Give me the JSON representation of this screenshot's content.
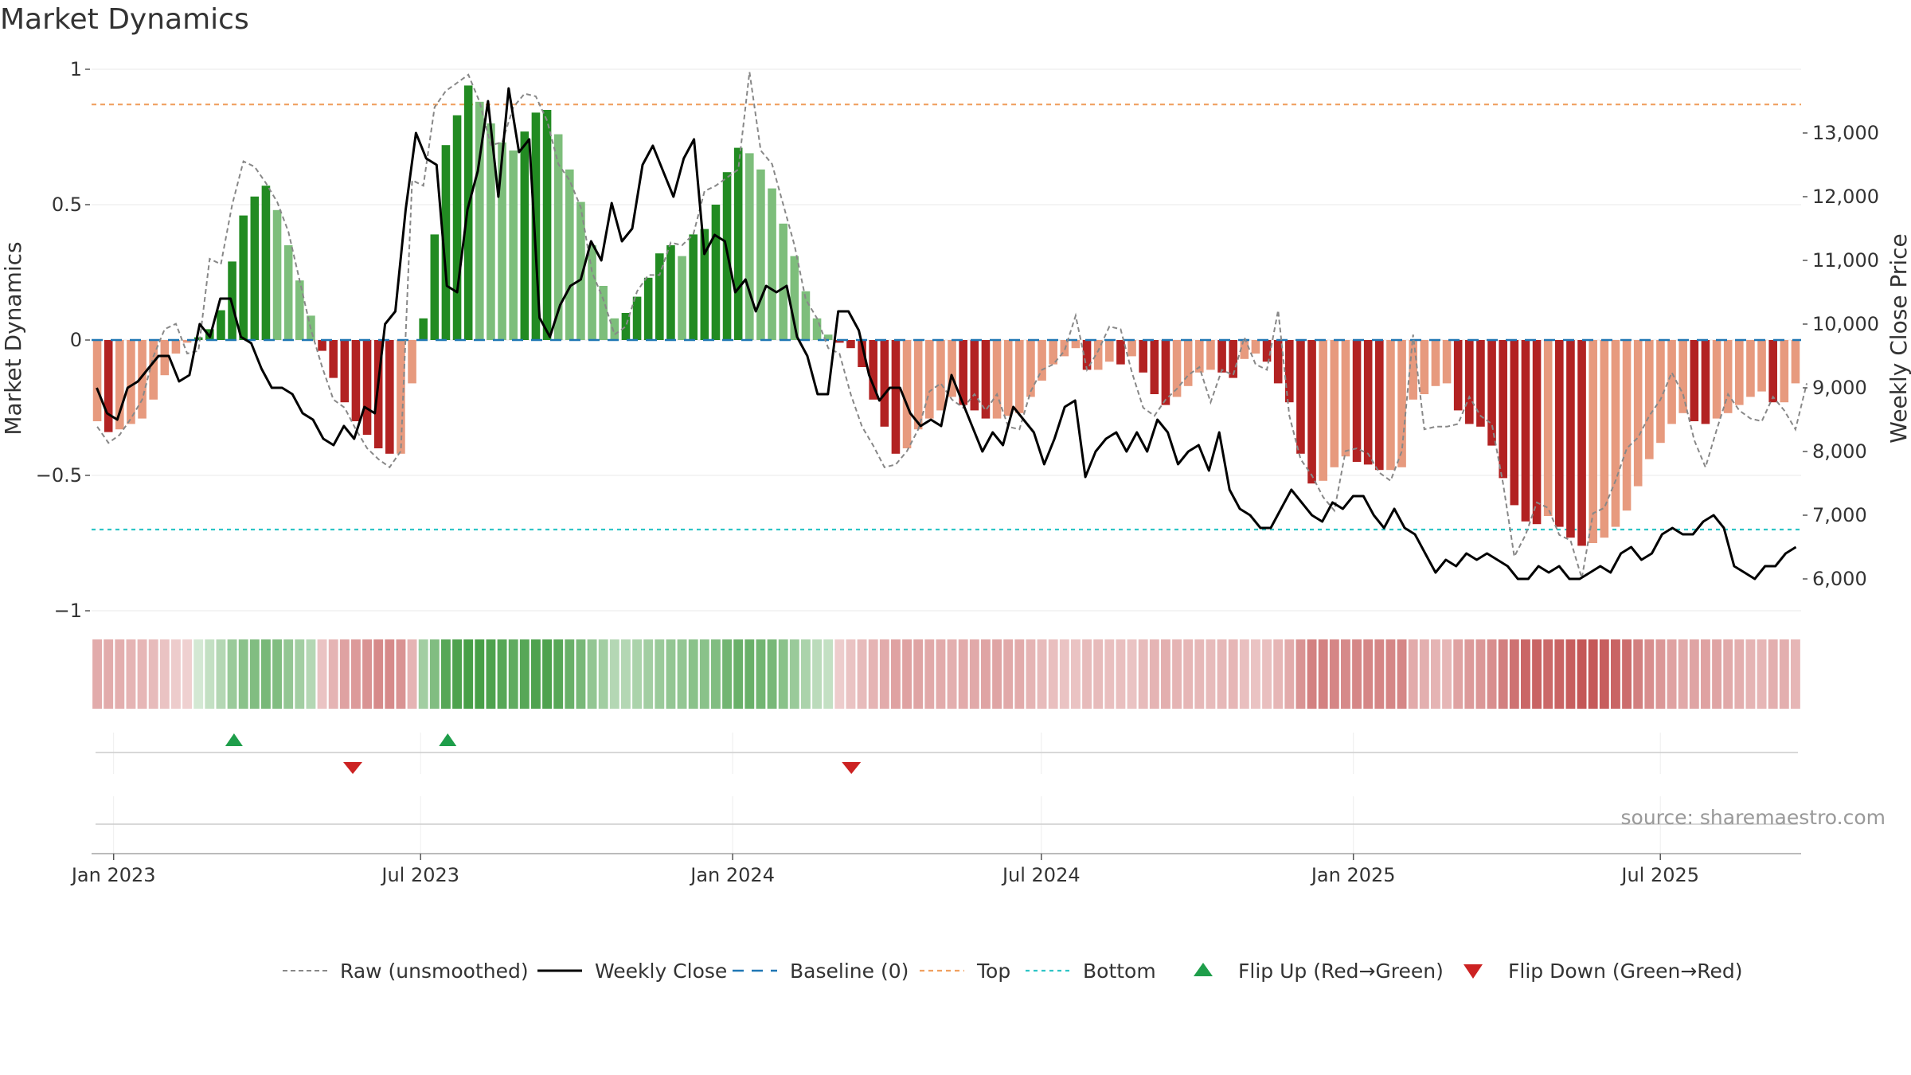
{
  "title": "Market Dynamics",
  "source": "source: sharemaestro.com",
  "colors": {
    "dark_green": "#228B22",
    "light_green": "#7DBE7B",
    "dark_red": "#B22222",
    "light_red": "#E79A7E",
    "weekly_close": "#000000",
    "raw": "#888888",
    "baseline": "#1F77B4",
    "top": "#F0A060",
    "bottom": "#2EC4C6",
    "flip_up": "#1E9E4A",
    "flip_down": "#CC2222"
  },
  "chart_data": {
    "type": "bar+line",
    "ylabel_left": "Market Dynamics",
    "ylabel_right": "Weekly Close Price",
    "ylim_left": [
      -1,
      1
    ],
    "ylim_right": [
      5500,
      14000
    ],
    "yticks_left": [
      1,
      0.5,
      0,
      -0.5,
      -1
    ],
    "yticks_left_labels": [
      "1",
      "0.5",
      "0",
      "−0.5",
      "−1"
    ],
    "yticks_right": [
      13000,
      12000,
      11000,
      10000,
      9000,
      8000,
      7000,
      6000
    ],
    "yticks_right_labels": [
      "13,000",
      "12,000",
      "11,000",
      "10,000",
      "9,000",
      "8,000",
      "7,000",
      "6,000"
    ],
    "xticks": [
      "Jan 2023",
      "Jul 2023",
      "Jan 2024",
      "Jul 2024",
      "Jan 2025",
      "Jul 2025"
    ],
    "x_start": "2022-12-19",
    "x_end": "2025-09-22",
    "top_threshold": 0.87,
    "bottom_threshold": -0.7,
    "baseline": 0,
    "market_dynamics": [
      -0.3,
      -0.34,
      -0.33,
      -0.31,
      -0.29,
      -0.22,
      -0.13,
      -0.05,
      -0.01,
      0.01,
      0.04,
      0.11,
      0.29,
      0.46,
      0.53,
      0.57,
      0.48,
      0.35,
      0.22,
      0.09,
      -0.04,
      -0.14,
      -0.23,
      -0.3,
      -0.35,
      -0.4,
      -0.42,
      -0.42,
      -0.16,
      0.08,
      0.39,
      0.72,
      0.83,
      0.94,
      0.88,
      0.8,
      0.73,
      0.7,
      0.77,
      0.84,
      0.85,
      0.76,
      0.63,
      0.51,
      0.35,
      0.2,
      0.08,
      0.1,
      0.16,
      0.23,
      0.32,
      0.35,
      0.31,
      0.39,
      0.41,
      0.5,
      0.62,
      0.71,
      0.69,
      0.63,
      0.56,
      0.43,
      0.31,
      0.18,
      0.08,
      0.02,
      -0.01,
      -0.03,
      -0.1,
      -0.22,
      -0.32,
      -0.42,
      -0.4,
      -0.33,
      -0.29,
      -0.26,
      -0.21,
      -0.24,
      -0.26,
      -0.29,
      -0.29,
      -0.28,
      -0.27,
      -0.21,
      -0.15,
      -0.09,
      -0.06,
      -0.03,
      -0.11,
      -0.11,
      -0.08,
      -0.09,
      -0.06,
      -0.12,
      -0.2,
      -0.24,
      -0.21,
      -0.17,
      -0.12,
      -0.11,
      -0.12,
      -0.14,
      -0.07,
      -0.05,
      -0.08,
      -0.16,
      -0.23,
      -0.42,
      -0.53,
      -0.52,
      -0.47,
      -0.43,
      -0.45,
      -0.46,
      -0.48,
      -0.48,
      -0.47,
      -0.22,
      -0.2,
      -0.17,
      -0.16,
      -0.26,
      -0.31,
      -0.32,
      -0.39,
      -0.51,
      -0.61,
      -0.67,
      -0.68,
      -0.65,
      -0.69,
      -0.73,
      -0.76,
      -0.75,
      -0.73,
      -0.69,
      -0.63,
      -0.54,
      -0.44,
      -0.38,
      -0.31,
      -0.27,
      -0.3,
      -0.31,
      -0.29,
      -0.27,
      -0.24,
      -0.21,
      -0.19,
      -0.23,
      -0.23,
      -0.16
    ],
    "raw_unsmoothed": [
      -0.32,
      -0.38,
      -0.35,
      -0.29,
      -0.22,
      -0.06,
      0.04,
      0.06,
      -0.05,
      -0.04,
      0.3,
      0.28,
      0.5,
      0.66,
      0.64,
      0.58,
      0.51,
      0.4,
      0.22,
      0.04,
      -0.1,
      -0.22,
      -0.25,
      -0.33,
      -0.4,
      -0.44,
      -0.47,
      -0.41,
      0.59,
      0.57,
      0.86,
      0.92,
      0.95,
      0.98,
      0.88,
      0.72,
      0.73,
      0.86,
      0.91,
      0.9,
      0.81,
      0.65,
      0.59,
      0.49,
      0.25,
      0.15,
      0.02,
      0.05,
      0.18,
      0.24,
      0.24,
      0.36,
      0.35,
      0.39,
      0.55,
      0.57,
      0.6,
      0.63,
      0.99,
      0.7,
      0.65,
      0.5,
      0.35,
      0.15,
      0.08,
      -0.03,
      -0.05,
      -0.2,
      -0.32,
      -0.39,
      -0.47,
      -0.46,
      -0.41,
      -0.33,
      -0.19,
      -0.16,
      -0.22,
      -0.25,
      -0.2,
      -0.26,
      -0.2,
      -0.32,
      -0.33,
      -0.19,
      -0.11,
      -0.09,
      -0.04,
      0.09,
      -0.11,
      -0.04,
      0.05,
      0.04,
      -0.12,
      -0.25,
      -0.28,
      -0.22,
      -0.18,
      -0.13,
      -0.1,
      -0.23,
      -0.11,
      -0.13,
      0.01,
      -0.09,
      -0.11,
      0.11,
      -0.28,
      -0.44,
      -0.5,
      -0.58,
      -0.63,
      -0.41,
      -0.4,
      -0.42,
      -0.49,
      -0.52,
      -0.41,
      0.02,
      -0.33,
      -0.32,
      -0.32,
      -0.31,
      -0.21,
      -0.28,
      -0.31,
      -0.53,
      -0.8,
      -0.72,
      -0.6,
      -0.62,
      -0.72,
      -0.74,
      -0.88,
      -0.64,
      -0.62,
      -0.52,
      -0.4,
      -0.36,
      -0.28,
      -0.22,
      -0.12,
      -0.2,
      -0.37,
      -0.47,
      -0.33,
      -0.2,
      -0.26,
      -0.29,
      -0.3,
      -0.21,
      -0.26,
      -0.33,
      -0.16
    ],
    "weekly_close": [
      9000,
      8600,
      8500,
      9000,
      9100,
      9300,
      9500,
      9500,
      9100,
      9200,
      10000,
      9800,
      10400,
      10400,
      9800,
      9700,
      9300,
      9000,
      9000,
      8900,
      8600,
      8500,
      8200,
      8100,
      8400,
      8200,
      8700,
      8600,
      10000,
      10200,
      11800,
      13000,
      12600,
      12500,
      10600,
      10500,
      11800,
      12400,
      13500,
      12000,
      13700,
      12700,
      12900,
      10100,
      9800,
      10300,
      10600,
      10700,
      11300,
      11000,
      11900,
      11300,
      11500,
      12500,
      12800,
      12400,
      12000,
      12600,
      12900,
      11100,
      11400,
      11300,
      10500,
      10700,
      10200,
      10600,
      10500,
      10600,
      9800,
      9500,
      8900,
      8900,
      10200,
      10200,
      9900,
      9200,
      8800,
      9000,
      9000,
      8600,
      8400,
      8500,
      8400,
      9200,
      8800,
      8400,
      8000,
      8300,
      8100,
      8700,
      8500,
      8300,
      7800,
      8200,
      8700,
      8800,
      7600,
      8000,
      8200,
      8300,
      8000,
      8300,
      8000,
      8500,
      8300,
      7800,
      8000,
      8100,
      7700,
      8300,
      7400,
      7100,
      7000,
      6800,
      6800,
      7100,
      7400,
      7200,
      7000,
      6900,
      7200,
      7100,
      7300,
      7300,
      7000,
      6800,
      7100,
      6800,
      6700,
      6400,
      6100,
      6300,
      6200,
      6400,
      6300,
      6400,
      6300,
      6200,
      6000,
      6000,
      6200,
      6100,
      6200,
      6000,
      6000,
      6100,
      6200,
      6100,
      6400,
      6500,
      6300,
      6400,
      6700,
      6800,
      6700,
      6700,
      6900,
      7000,
      6800,
      6200,
      6100,
      6000,
      6200,
      6200,
      6400,
      6500
    ],
    "strength_band": [
      0.35,
      0.35,
      0.33,
      0.3,
      0.28,
      0.25,
      0.2,
      0.15,
      0.12,
      0.1,
      0.2,
      0.3,
      0.45,
      0.55,
      0.6,
      0.65,
      0.6,
      0.5,
      0.4,
      0.3,
      0.2,
      0.3,
      0.4,
      0.45,
      0.5,
      0.55,
      0.55,
      0.5,
      0.3,
      0.4,
      0.6,
      0.85,
      0.9,
      0.95,
      0.95,
      0.9,
      0.85,
      0.8,
      0.85,
      0.9,
      0.9,
      0.85,
      0.75,
      0.65,
      0.5,
      0.4,
      0.3,
      0.3,
      0.35,
      0.4,
      0.45,
      0.5,
      0.5,
      0.55,
      0.55,
      0.6,
      0.7,
      0.75,
      0.75,
      0.7,
      0.65,
      0.55,
      0.45,
      0.35,
      0.25,
      0.2,
      0.15,
      0.2,
      0.25,
      0.3,
      0.35,
      0.4,
      0.4,
      0.38,
      0.36,
      0.34,
      0.32,
      0.34,
      0.36,
      0.38,
      0.38,
      0.36,
      0.34,
      0.3,
      0.25,
      0.22,
      0.2,
      0.2,
      0.25,
      0.25,
      0.22,
      0.22,
      0.2,
      0.25,
      0.3,
      0.32,
      0.3,
      0.28,
      0.26,
      0.25,
      0.26,
      0.28,
      0.22,
      0.2,
      0.22,
      0.28,
      0.35,
      0.5,
      0.6,
      0.6,
      0.58,
      0.55,
      0.56,
      0.57,
      0.58,
      0.58,
      0.57,
      0.35,
      0.32,
      0.3,
      0.28,
      0.4,
      0.45,
      0.46,
      0.52,
      0.62,
      0.7,
      0.76,
      0.78,
      0.75,
      0.78,
      0.82,
      0.85,
      0.84,
      0.82,
      0.78,
      0.72,
      0.62,
      0.52,
      0.46,
      0.4,
      0.36,
      0.38,
      0.4,
      0.38,
      0.36,
      0.33,
      0.3,
      0.28,
      0.32,
      0.32,
      0.28
    ],
    "flips": [
      {
        "type": "up",
        "date": "2023-03-13"
      },
      {
        "type": "down",
        "date": "2023-05-22"
      },
      {
        "type": "up",
        "date": "2023-07-17"
      },
      {
        "type": "down",
        "date": "2024-03-11"
      }
    ],
    "legend": [
      {
        "label": "Raw (unsmoothed)",
        "style": "raw"
      },
      {
        "label": "Weekly Close",
        "style": "close"
      },
      {
        "label": "Baseline (0)",
        "style": "baseline"
      },
      {
        "label": "Top",
        "style": "top"
      },
      {
        "label": "Bottom",
        "style": "bottom"
      },
      {
        "label": "Flip Up (Red→Green)",
        "style": "flip-up"
      },
      {
        "label": "Flip Down (Green→Red)",
        "style": "flip-down"
      }
    ]
  }
}
